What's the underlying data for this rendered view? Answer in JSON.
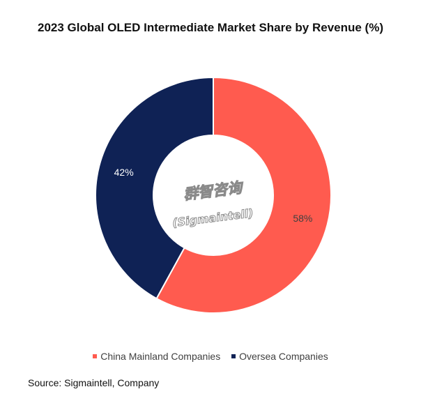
{
  "chart_data": {
    "type": "pie",
    "title": "2023 Global OLED Intermediate Market Share by Revenue (%)",
    "slices": [
      {
        "label": "China Mainland Companies",
        "value": 58,
        "display": "58%",
        "color": "#FF5B4F"
      },
      {
        "label": "Oversea Companies",
        "value": 42,
        "display": "42%",
        "color": "#0F2255"
      }
    ],
    "legend_position": "bottom"
  },
  "watermark": {
    "line1": "群智咨询",
    "line2": "(Sigmaintell)"
  },
  "source": "Source: Sigmaintell, Company"
}
